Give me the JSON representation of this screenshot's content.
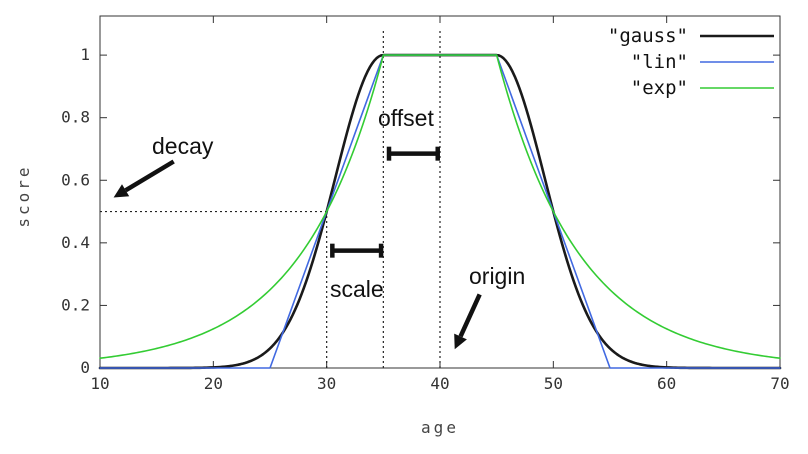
{
  "chart_data": {
    "type": "line",
    "title": "",
    "xlabel": "age",
    "ylabel": "score",
    "xlim": [
      10,
      70
    ],
    "ylim": [
      0,
      1.125
    ],
    "xtick_values": [
      10,
      20,
      30,
      40,
      50,
      60,
      70
    ],
    "xticks": [
      "10",
      "20",
      "30",
      "40",
      "50",
      "60",
      "70"
    ],
    "ytick_values": [
      0,
      0.2,
      0.4,
      0.6,
      0.8,
      1
    ],
    "yticks": [
      "0",
      "0.2",
      "0.4",
      "0.6",
      "0.8",
      "1"
    ],
    "grid": false,
    "legend_position": "top-right-inside",
    "background": "#ffffff",
    "border_color": "#333333",
    "params": {
      "origin": 40,
      "offset": 5,
      "scale": 5,
      "decay": 0.5
    },
    "series": [
      {
        "name": "\"gauss\"",
        "function": "gauss",
        "color": "#1a1a1a",
        "width": 2.6
      },
      {
        "name": "\"lin\"",
        "function": "linear",
        "color": "#4169e1",
        "width": 1.6
      },
      {
        "name": "\"exp\"",
        "function": "exp",
        "color": "#33cc33",
        "width": 1.6
      }
    ],
    "guides": {
      "color": "#222222",
      "vlines": [
        {
          "x": 30,
          "y0": 0,
          "y1": 0.5
        },
        {
          "x": 35,
          "y0": 0,
          "y1": 1.08
        },
        {
          "x": 40,
          "y0": 0,
          "y1": 1.08
        }
      ],
      "hline": {
        "y": 0.5,
        "x0": 10,
        "x1": 30
      }
    },
    "brackets": [
      {
        "label": "offset",
        "x0": 35.5,
        "x1": 39.8,
        "y": 0.685
      },
      {
        "label": "scale",
        "x0": 30.5,
        "x1": 34.8,
        "y": 0.375
      }
    ],
    "annotations": {
      "decay": "decay",
      "offset": "offset",
      "scale": "scale",
      "origin": "origin"
    },
    "arrows": [
      {
        "name": "decay-arrow",
        "from": [
          16.5,
          0.66
        ],
        "to": [
          11.2,
          0.545
        ]
      },
      {
        "name": "origin-arrow",
        "from": [
          43.5,
          0.235
        ],
        "to": [
          41.3,
          0.06
        ]
      }
    ]
  }
}
